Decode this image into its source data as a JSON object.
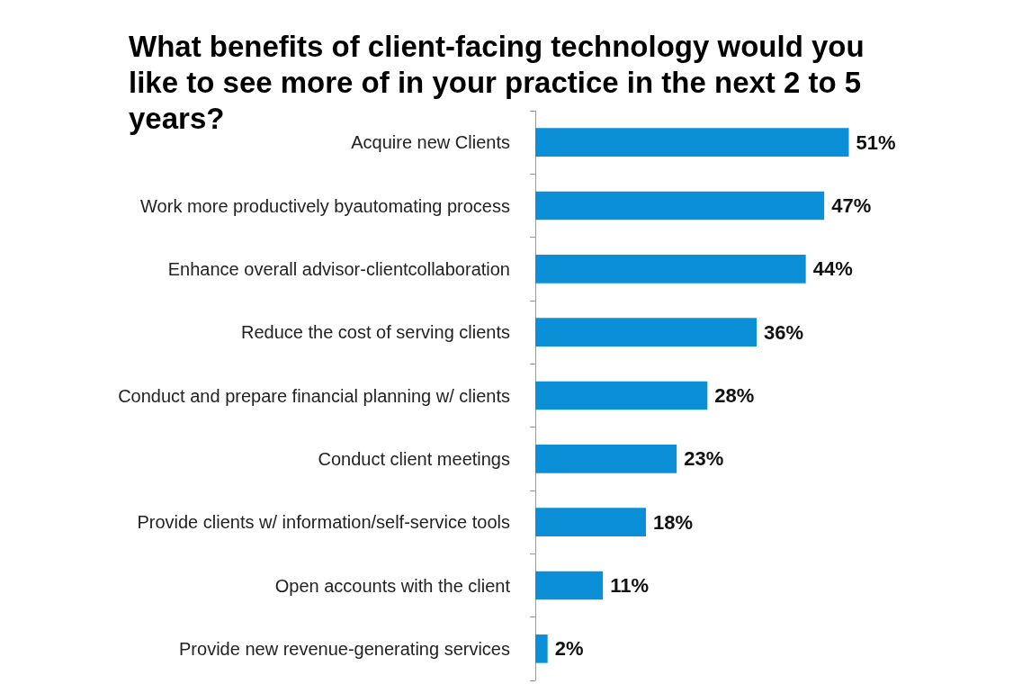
{
  "chart_data": {
    "type": "bar",
    "orientation": "horizontal",
    "title": "What benefits of client-facing technology would you like to see more of in your practice in the next 2 to 5 years?",
    "categories": [
      "Acquire new Clients",
      "Work more productively byautomating process",
      "Enhance overall advisor-clientcollaboration",
      "Reduce the cost of serving clients",
      "Conduct and prepare financial planning w/ clients",
      "Conduct client meetings",
      "Provide clients w/ information/self-service tools",
      "Open accounts with the client",
      "Provide new revenue-generating services"
    ],
    "values": [
      51,
      47,
      44,
      36,
      28,
      23,
      18,
      11,
      2
    ],
    "value_labels": [
      "51%",
      "47%",
      "44%",
      "36%",
      "28%",
      "23%",
      "18%",
      "11%",
      "2%"
    ],
    "color": "#0b8fd6"
  }
}
